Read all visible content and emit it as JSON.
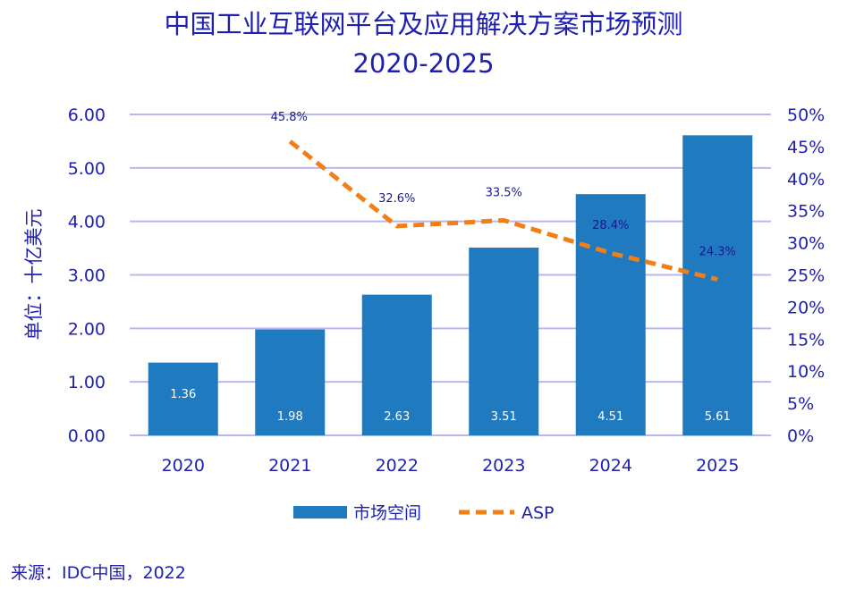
{
  "chart_data": {
    "type": "bar+line",
    "title": "中国工业互联网平台及应用解决方案市场预测",
    "subtitle": "2020-2025",
    "ylabel": "单位：十亿美元",
    "categories": [
      "2020",
      "2021",
      "2022",
      "2023",
      "2024",
      "2025"
    ],
    "ylim": [
      0,
      6
    ],
    "yticks": [
      "0.00",
      "1.00",
      "2.00",
      "3.00",
      "4.00",
      "5.00",
      "6.00"
    ],
    "y2lim": [
      0,
      50
    ],
    "y2ticks": [
      "0%",
      "5%",
      "10%",
      "15%",
      "20%",
      "25%",
      "30%",
      "35%",
      "40%",
      "45%",
      "50%"
    ],
    "grid": true,
    "legend": "bottom",
    "series": [
      {
        "name": "市场空间",
        "type": "bar",
        "axis": "left",
        "color": "#1f7abf",
        "values": [
          1.36,
          1.98,
          2.63,
          3.51,
          4.51,
          5.61
        ],
        "labels": [
          "1.36",
          "1.98",
          "2.63",
          "3.51",
          "4.51",
          "5.61"
        ]
      },
      {
        "name": "ASP",
        "type": "line",
        "axis": "right",
        "style": "dashed",
        "color": "#f07f1a",
        "values": [
          null,
          45.8,
          32.6,
          33.5,
          28.4,
          24.3
        ],
        "labels": [
          "",
          "45.8%",
          "32.6%",
          "33.5%",
          "28.4%",
          "24.3%"
        ]
      }
    ]
  },
  "source": "来源：IDC中国，2022"
}
